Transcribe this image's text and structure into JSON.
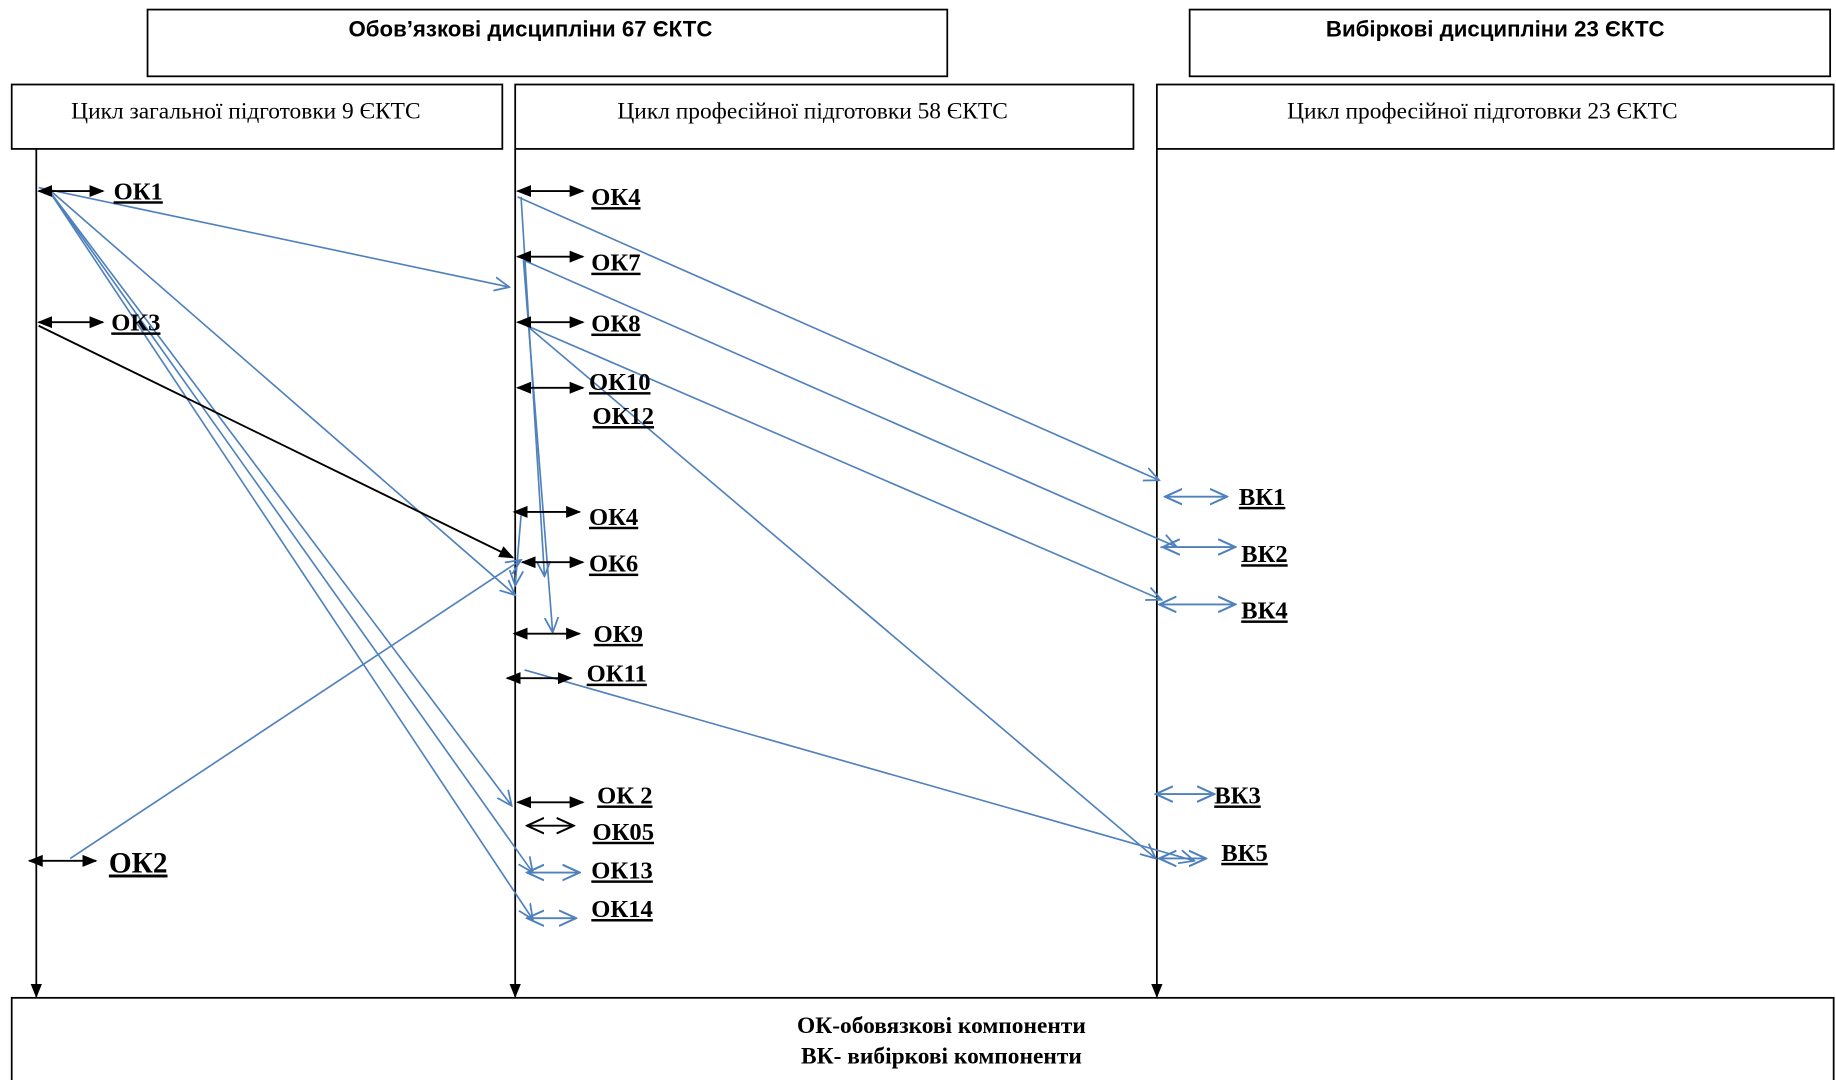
{
  "headers": [
    "Обов’язкові дисципліни 67 ЄКТС",
    "Вибіркові дисципліни 23 ЄКТС"
  ],
  "cycles": [
    "Цикл загальної підготовки 9 ЄКТС",
    "Цикл професійної підготовки 58 ЄКТС",
    "Цикл професійної підготовки 23 ЄКТС"
  ],
  "nodes": [
    "ОК1",
    "ОК3",
    "ОК2",
    "ОК4",
    "ОК7",
    "ОК8",
    "ОК10",
    "ОК12",
    "ОК4",
    "ОК6",
    "ОК9",
    "ОК11",
    "ОК 2",
    "ОК05",
    "ОК13",
    "ОК14",
    "ВК1",
    "ВК2",
    "ВК4",
    "ВК3",
    "ВК5"
  ],
  "legend": [
    "ОК-обовязкові компоненти",
    "ВК- вибіркові компоненти"
  ]
}
